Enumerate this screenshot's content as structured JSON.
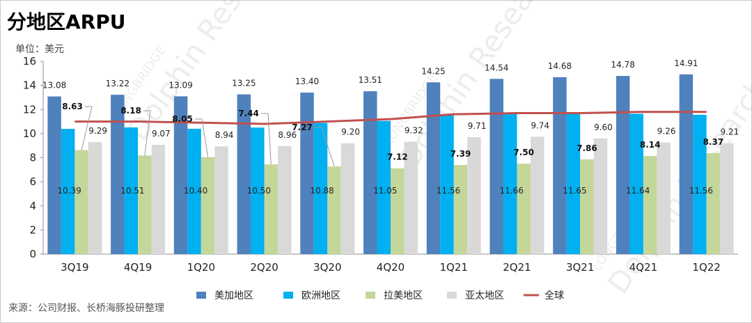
{
  "title": "分地区ARPU",
  "unit_label": "单位：美元",
  "source": "来源：公司财报、长桥海豚投研整理",
  "watermark": {
    "text1": "LONGBRIDGE",
    "text2": "Dolphin Research"
  },
  "colors": {
    "na": "#4f81bd",
    "eu": "#00b0f0",
    "latam": "#c4d79b",
    "apac": "#d9d9d9",
    "global": "#c0504d"
  },
  "chart_data": {
    "type": "bar",
    "title": "分地区ARPU",
    "ylabel": "单位：美元",
    "ylim": [
      0,
      16
    ],
    "yticks": [
      0,
      2,
      4,
      6,
      8,
      10,
      12,
      14,
      16
    ],
    "categories": [
      "3Q19",
      "4Q19",
      "1Q20",
      "2Q20",
      "3Q20",
      "4Q20",
      "1Q21",
      "2Q21",
      "3Q21",
      "4Q21",
      "1Q22"
    ],
    "series": [
      {
        "name": "美加地区",
        "type": "bar",
        "values": [
          13.08,
          13.22,
          13.09,
          13.25,
          13.4,
          13.51,
          14.25,
          14.54,
          14.68,
          14.78,
          14.91
        ]
      },
      {
        "name": "欧洲地区",
        "type": "bar",
        "values": [
          10.39,
          10.51,
          10.4,
          10.5,
          10.88,
          11.05,
          11.56,
          11.66,
          11.65,
          11.64,
          11.56
        ]
      },
      {
        "name": "拉美地区",
        "type": "bar",
        "values": [
          8.63,
          8.18,
          8.05,
          7.44,
          7.27,
          7.12,
          7.39,
          7.5,
          7.86,
          8.14,
          8.37
        ]
      },
      {
        "name": "亚太地区",
        "type": "bar",
        "values": [
          9.29,
          9.07,
          8.94,
          8.96,
          9.2,
          9.32,
          9.71,
          9.74,
          9.6,
          9.26,
          9.21
        ]
      },
      {
        "name": "全球",
        "type": "line",
        "values": [
          11.0,
          11.0,
          10.9,
          10.8,
          11.0,
          11.2,
          11.6,
          11.7,
          11.7,
          11.8,
          11.8
        ]
      }
    ],
    "legend_position": "bottom",
    "grid": false
  }
}
